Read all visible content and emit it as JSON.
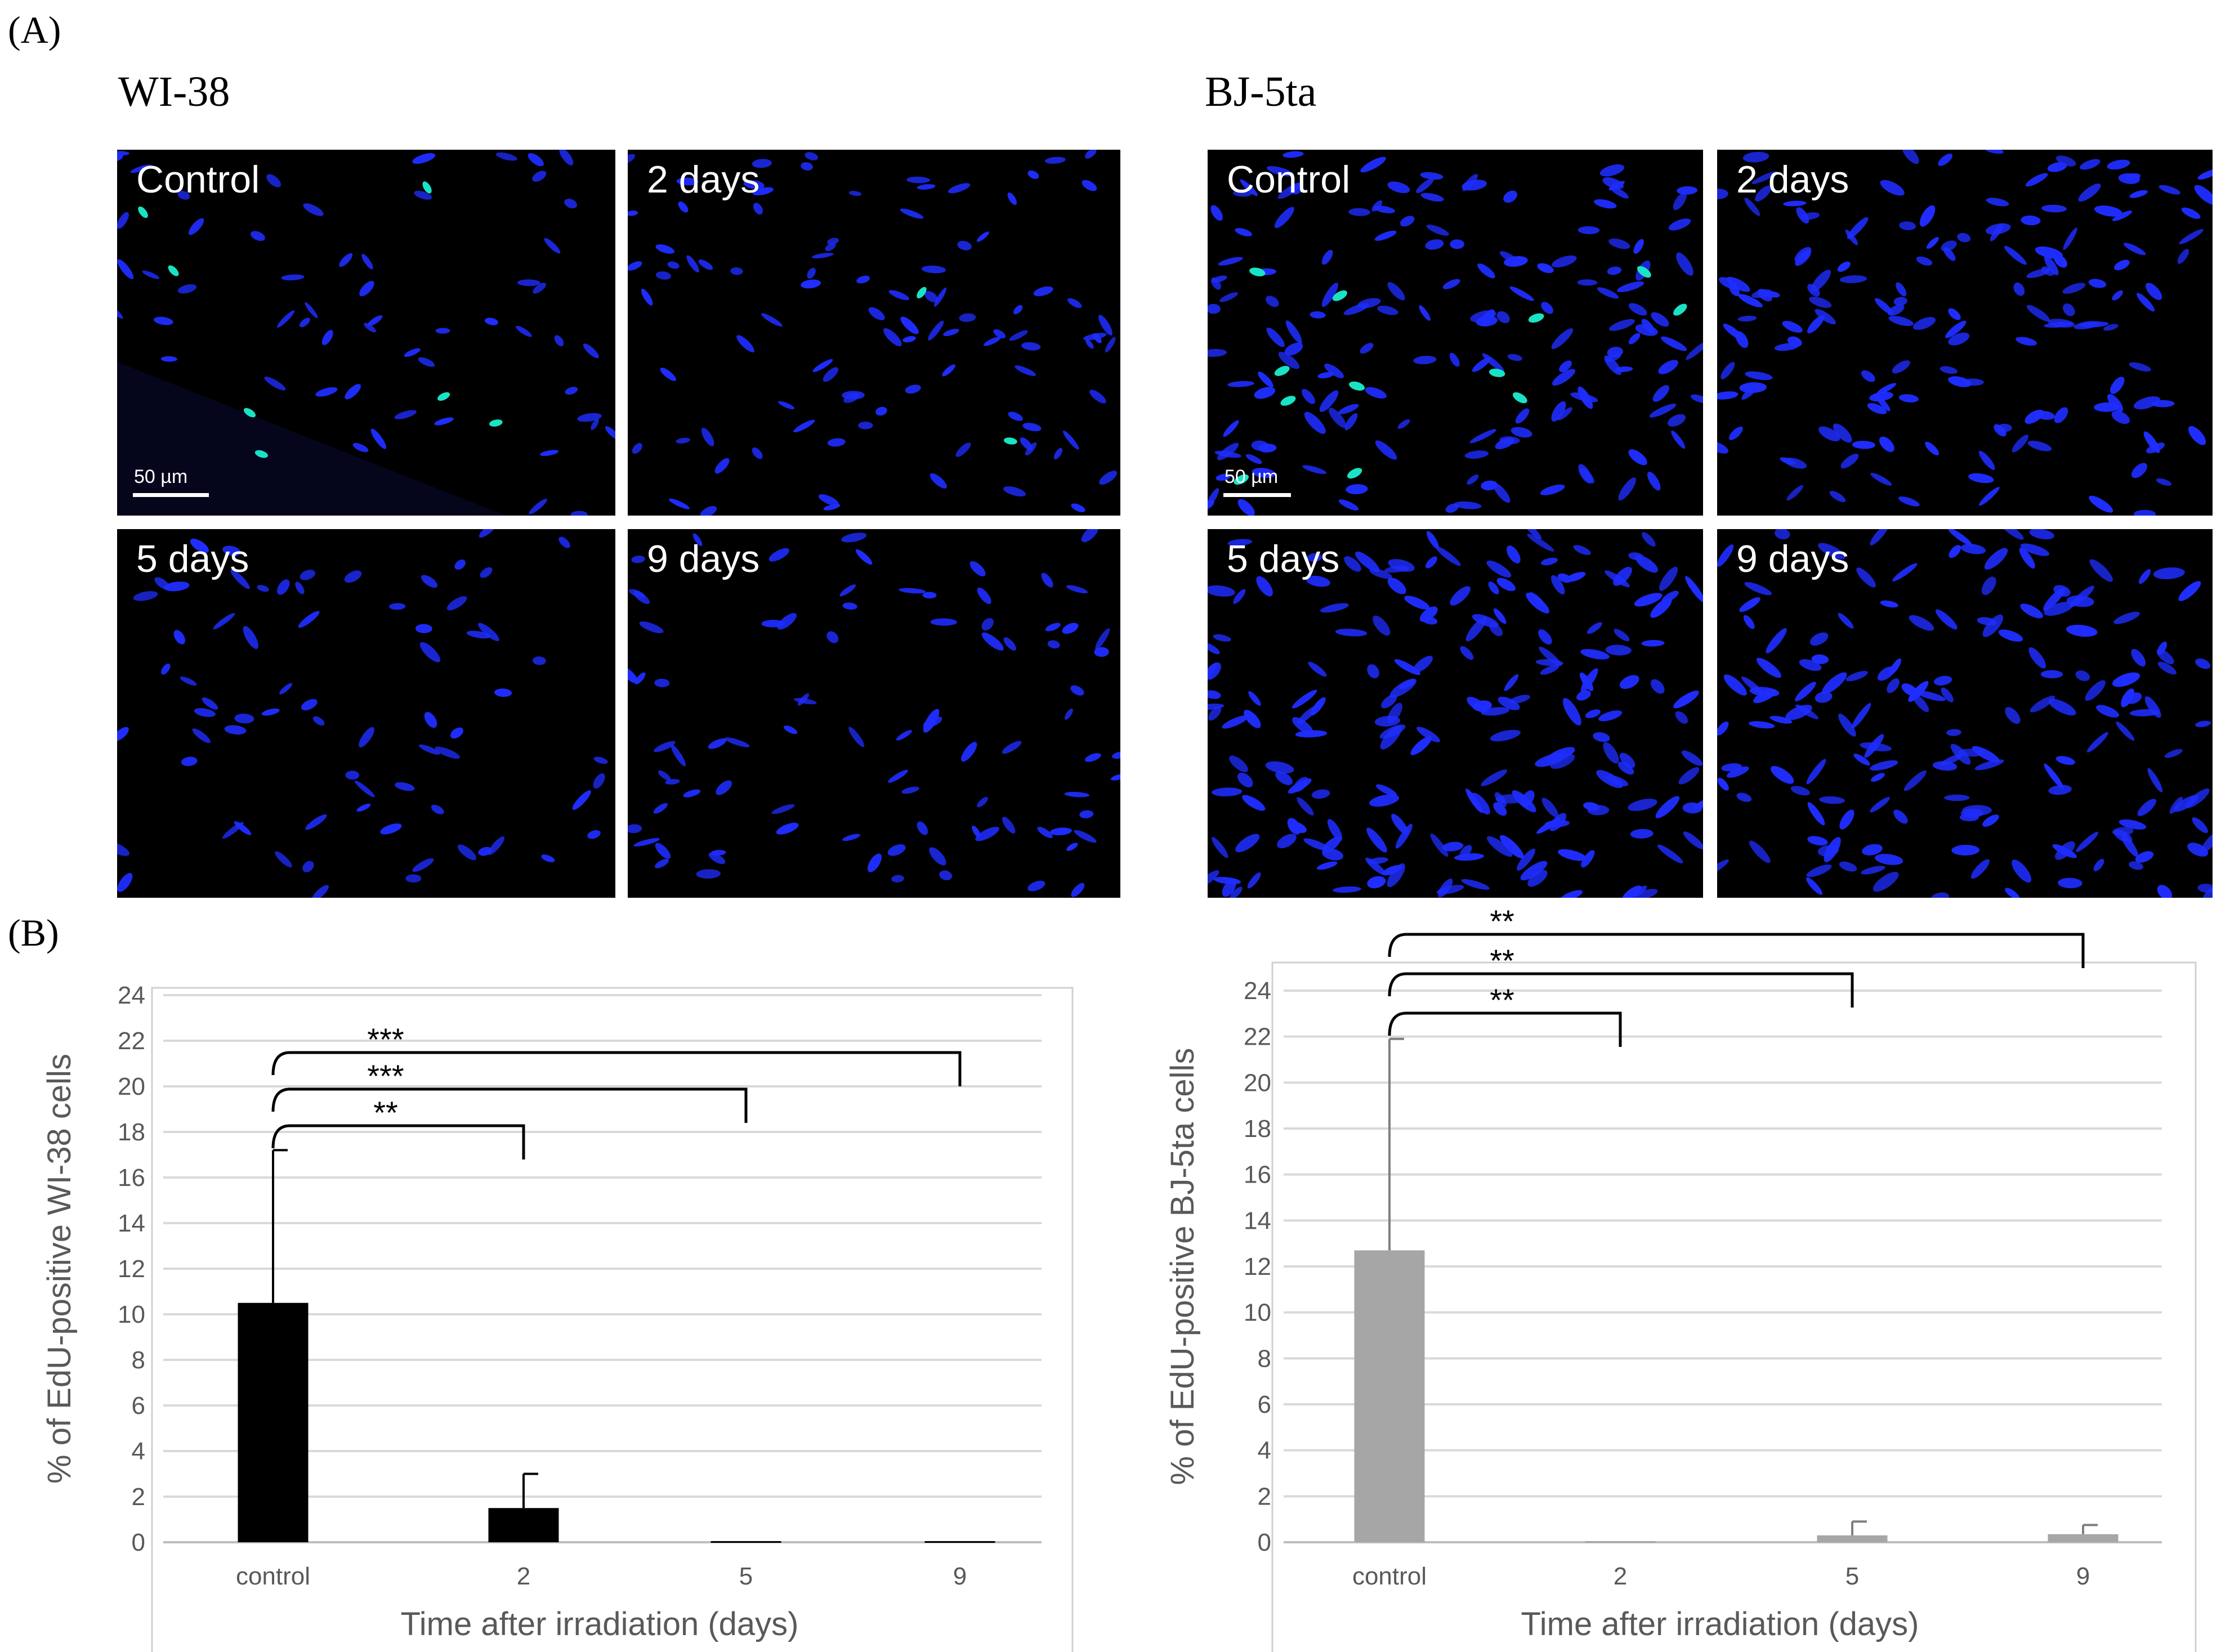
{
  "figure": {
    "panel_a_label": "(A)",
    "panel_b_label": "(B)",
    "groups": [
      {
        "title": "WI-38",
        "images": [
          {
            "label": "Control",
            "scale_label": "50 µm"
          },
          {
            "label": "2 days"
          },
          {
            "label": "5 days"
          },
          {
            "label": "9 days"
          }
        ]
      },
      {
        "title": "BJ-5ta",
        "images": [
          {
            "label": "Control",
            "scale_label": "50 µm"
          },
          {
            "label": "2 days"
          },
          {
            "label": "5 days"
          },
          {
            "label": "9 days"
          }
        ]
      }
    ],
    "colors": {
      "nucleus": "#1f2dff",
      "edu_positive": "#19e3c4",
      "bar_wi38": "#000000",
      "bar_bj5ta": "#a6a6a6"
    }
  },
  "chart_data": [
    {
      "type": "bar",
      "categories": [
        "control",
        "2",
        "5",
        "9"
      ],
      "values": [
        10.5,
        1.5,
        0.05,
        0.05
      ],
      "error": [
        6.7,
        1.5,
        0,
        0
      ],
      "xlabel": "Time after irradiation (days)",
      "ylabel": "% of EdU-positive WI-38 cells",
      "ylim": [
        0,
        24
      ],
      "yticks": [
        0,
        2,
        4,
        6,
        8,
        10,
        12,
        14,
        16,
        18,
        20,
        22,
        24
      ],
      "grid": true,
      "bar_color": "#000000",
      "significance": [
        {
          "from": "control",
          "to": "2",
          "label": "**"
        },
        {
          "from": "control",
          "to": "5",
          "label": "***"
        },
        {
          "from": "control",
          "to": "9",
          "label": "***"
        }
      ]
    },
    {
      "type": "bar",
      "categories": [
        "control",
        "2",
        "5",
        "9"
      ],
      "values": [
        12.7,
        0.05,
        0.3,
        0.35
      ],
      "error": [
        9.2,
        0,
        0.6,
        0.4
      ],
      "xlabel": "Time after irradiation (days)",
      "ylabel": "% of EdU-positive BJ-5ta cells",
      "ylim": [
        0,
        24
      ],
      "yticks": [
        0,
        2,
        4,
        6,
        8,
        10,
        12,
        14,
        16,
        18,
        20,
        22,
        24
      ],
      "grid": true,
      "bar_color": "#a6a6a6",
      "significance": [
        {
          "from": "control",
          "to": "2",
          "label": "**"
        },
        {
          "from": "control",
          "to": "5",
          "label": "**"
        },
        {
          "from": "control",
          "to": "9",
          "label": "**"
        }
      ]
    }
  ]
}
